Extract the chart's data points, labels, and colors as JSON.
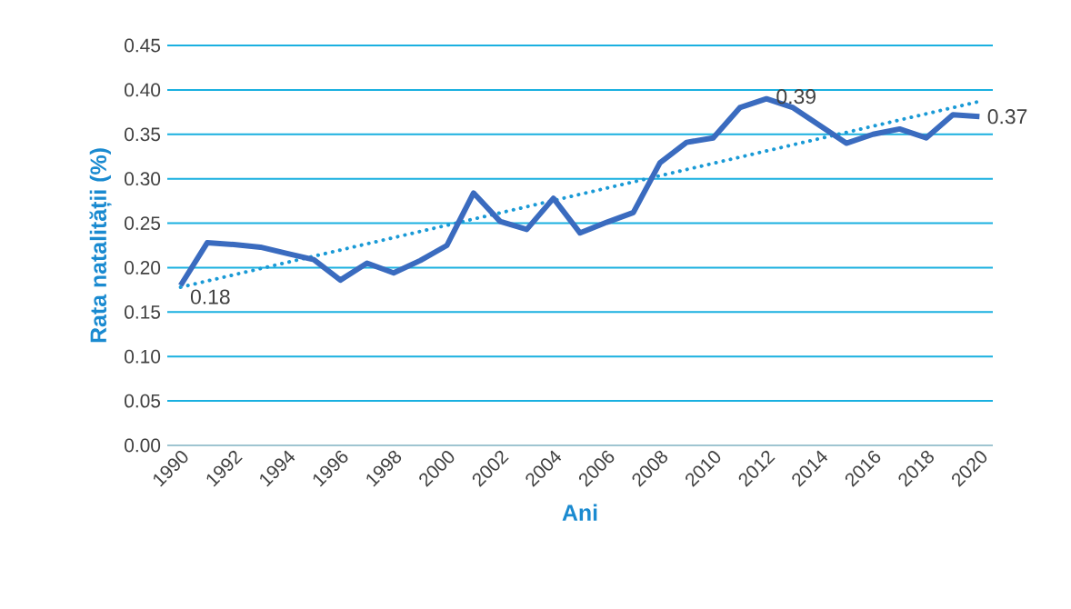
{
  "chart_data": {
    "type": "line",
    "xlabel": "Ani",
    "ylabel": "Rata natalității (%)",
    "xlim": [
      1989.5,
      2020.5
    ],
    "xticks": [
      1990,
      1992,
      1994,
      1996,
      1998,
      2000,
      2002,
      2004,
      2006,
      2008,
      2010,
      2012,
      2014,
      2016,
      2018,
      2020
    ],
    "ylim": [
      0,
      0.45
    ],
    "yticks": [
      {
        "value": 0,
        "label": "0.00"
      },
      {
        "value": 0.05,
        "label": "0.05"
      },
      {
        "value": 0.1,
        "label": "0.10"
      },
      {
        "value": 0.15,
        "label": "0.15"
      },
      {
        "value": 0.2,
        "label": "0.20"
      },
      {
        "value": 0.25,
        "label": "0.25"
      },
      {
        "value": 0.3,
        "label": "0.30"
      },
      {
        "value": 0.35,
        "label": "0.35"
      },
      {
        "value": 0.4,
        "label": "0.40"
      },
      {
        "value": 0.45,
        "label": "0.45"
      }
    ],
    "grid": "y",
    "marker": "none",
    "series": [
      {
        "color": "#3a6bbf",
        "line_style": "solid",
        "x": [
          1990,
          1991,
          1992,
          1993,
          1994,
          1995,
          1996,
          1997,
          1998,
          1999,
          2000,
          2001,
          2002,
          2003,
          2004,
          2005,
          2006,
          2007,
          2008,
          2009,
          2010,
          2011,
          2012,
          2013,
          2014,
          2015,
          2016,
          2017,
          2018,
          2019,
          2020
        ],
        "values": [
          0.18,
          0.228,
          0.226,
          0.223,
          0.216,
          0.209,
          0.186,
          0.205,
          0.194,
          0.208,
          0.225,
          0.284,
          0.252,
          0.243,
          0.278,
          0.239,
          0.251,
          0.262,
          0.318,
          0.341,
          0.346,
          0.38,
          0.39,
          0.38,
          0.36,
          0.34,
          0.35,
          0.356,
          0.346,
          0.372,
          0.37
        ],
        "value_labels": [
          "0.18",
          null,
          null,
          null,
          null,
          null,
          null,
          null,
          null,
          null,
          null,
          null,
          null,
          null,
          null,
          null,
          null,
          null,
          null,
          null,
          null,
          null,
          "0.39",
          null,
          null,
          null,
          null,
          null,
          null,
          null,
          "0.37"
        ]
      },
      {
        "type": "line",
        "color": "#1a9ad6",
        "line_style": "dotted",
        "x": [
          1990,
          2020
        ],
        "values": [
          0.178,
          0.387
        ]
      }
    ]
  }
}
